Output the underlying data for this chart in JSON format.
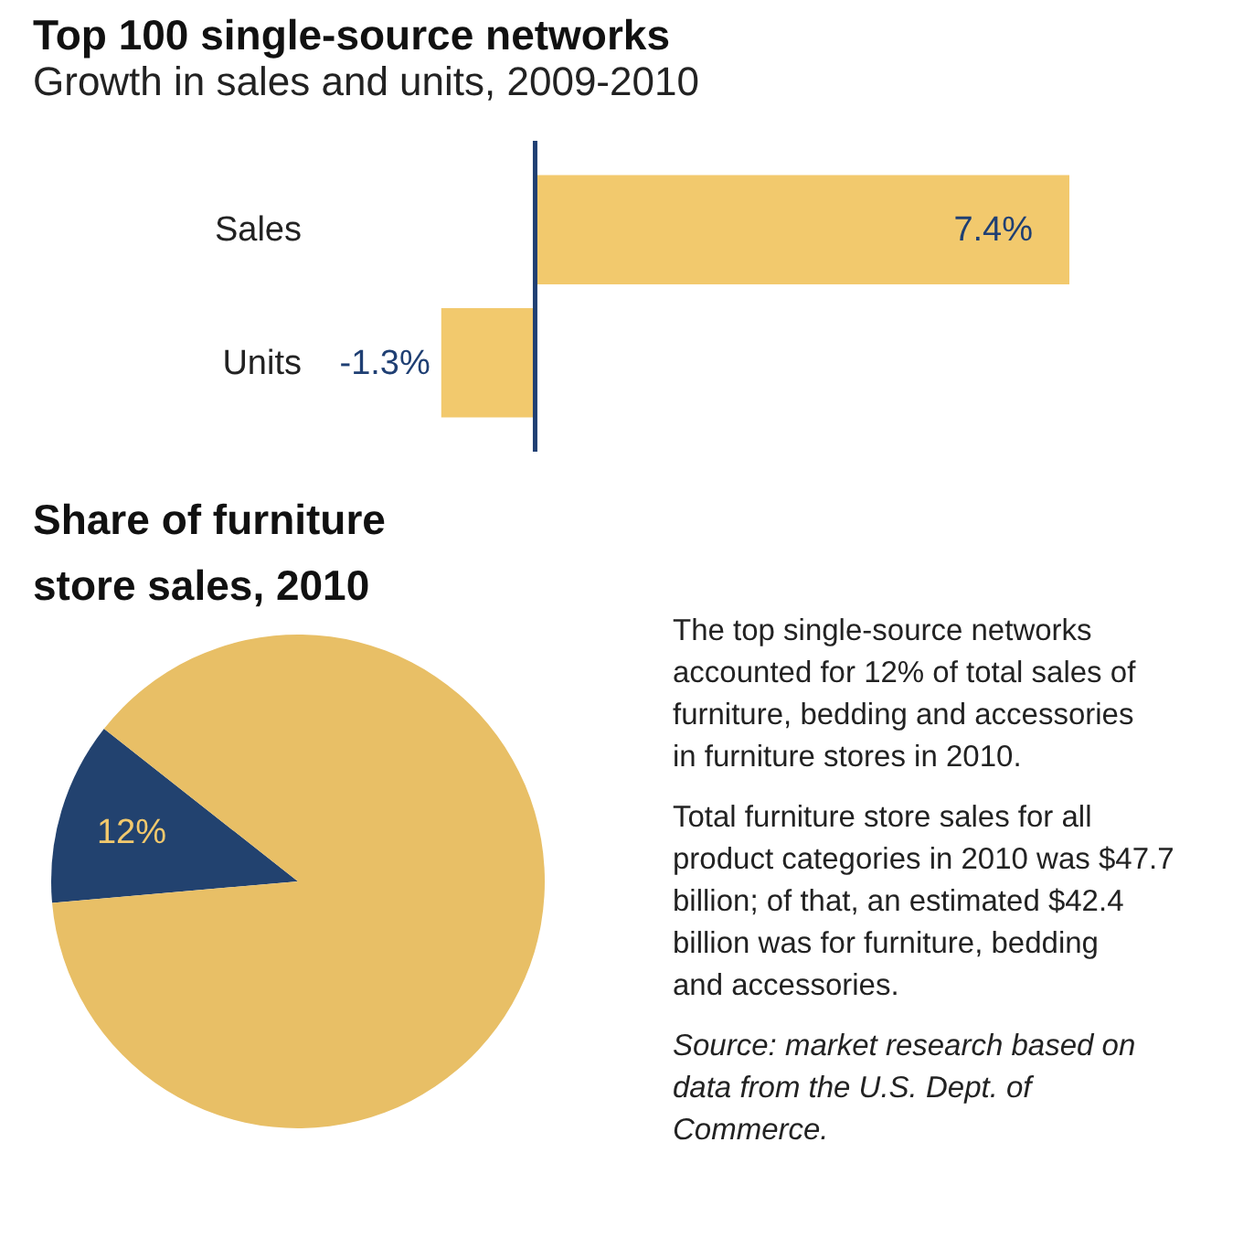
{
  "chart_data": [
    {
      "type": "bar",
      "orientation": "horizontal",
      "title": "Top 100 single-source networks",
      "subtitle": "Growth in sales and units, 2009-2010",
      "categories": [
        "Sales",
        "Units"
      ],
      "values": [
        7.4,
        -1.3
      ],
      "value_labels": [
        "7.4%",
        "-1.3%"
      ],
      "color": "#f2c96d",
      "ref_lines": [
        {
          "axis": "x",
          "value": 0,
          "color": "#1f3f73"
        }
      ]
    },
    {
      "type": "pie",
      "title": "Share of furniture store sales, 2010",
      "categories": [
        null,
        null
      ],
      "values": [
        12,
        88
      ],
      "colors": [
        "#22426f",
        "#e8bf66"
      ],
      "value_labels": [
        "12%",
        null
      ],
      "annotations": [
        "The top single-source networks accounted for 12% of total sales of furniture, bedding and accessories in furniture stores in 2010.",
        "Total furniture store sales for all product categories in 2010 was $47.7 billion; of that, an estimated $42.4 billion was for furniture, bedding and accessories.",
        "Source: market research based on data from the U.S. Dept. of Commerce."
      ]
    }
  ]
}
